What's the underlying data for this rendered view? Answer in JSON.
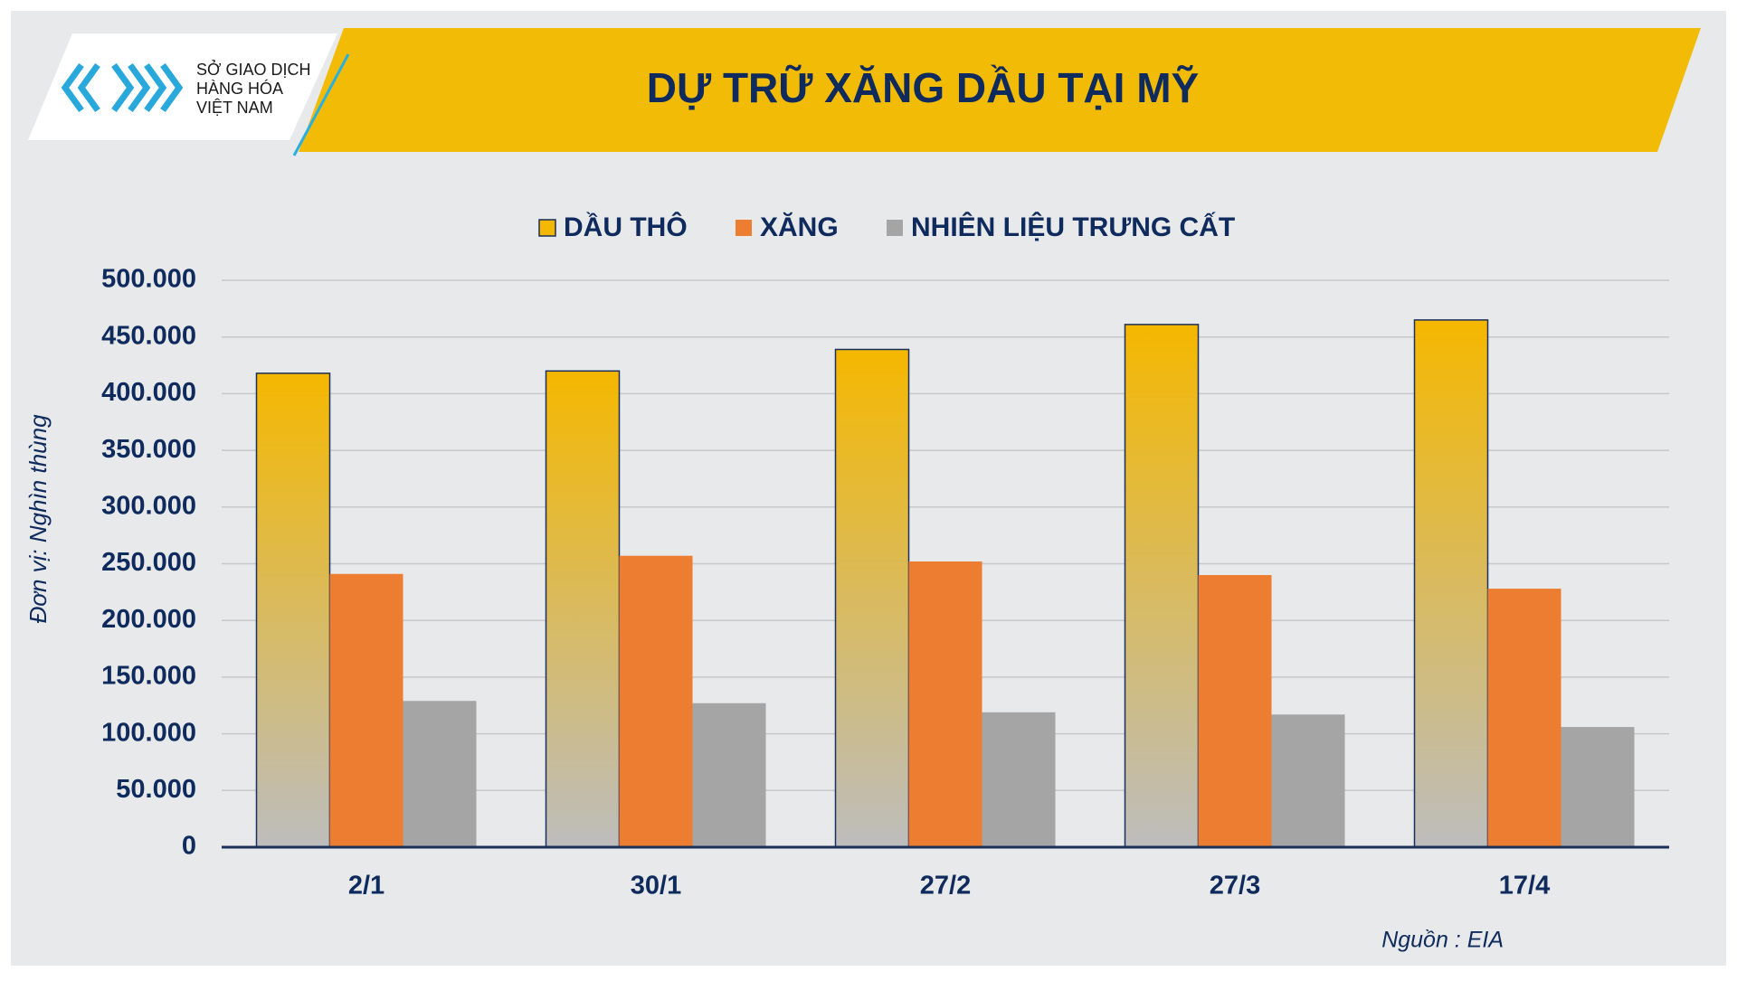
{
  "logo": {
    "lines": [
      "SỞ GIAO DỊCH",
      "HÀNG HÓA",
      "VIỆT NAM"
    ]
  },
  "source": "Nguồn : EIA",
  "chart_data": {
    "type": "bar",
    "title": "DỰ TRỮ XĂNG DẦU TẠI MỸ",
    "y_label": "Đơn vị: Nghìn thùng",
    "categories": [
      "2/1",
      "30/1",
      "27/2",
      "27/3",
      "17/4"
    ],
    "series": [
      {
        "name": "DẦU THÔ",
        "color": "#f5b800",
        "values": [
          418000,
          420000,
          439000,
          461000,
          465000
        ]
      },
      {
        "name": "XĂNG",
        "color": "#ed7d31",
        "values": [
          241000,
          257000,
          252000,
          240000,
          228000
        ]
      },
      {
        "name": "NHIÊN LIỆU TRƯNG CẤT",
        "color": "#a5a5a5",
        "values": [
          129000,
          127000,
          119000,
          117000,
          106000
        ]
      }
    ],
    "ylim": [
      0,
      500000
    ],
    "yticks": [
      0,
      {
        "value": 50000,
        "label": "50.000"
      },
      {
        "value": 100000,
        "label": "100.000"
      },
      {
        "value": 150000,
        "label": "150.000"
      },
      {
        "value": 200000,
        "label": "200.000"
      },
      {
        "value": 250000,
        "label": "250.000"
      },
      {
        "value": 300000,
        "label": "300.000"
      },
      {
        "value": 350000,
        "label": "350.000"
      },
      {
        "value": 400000,
        "label": "400.000"
      },
      {
        "value": 450000,
        "label": "450.000"
      },
      {
        "value": 500000,
        "label": "500.000"
      }
    ],
    "grid": true
  }
}
